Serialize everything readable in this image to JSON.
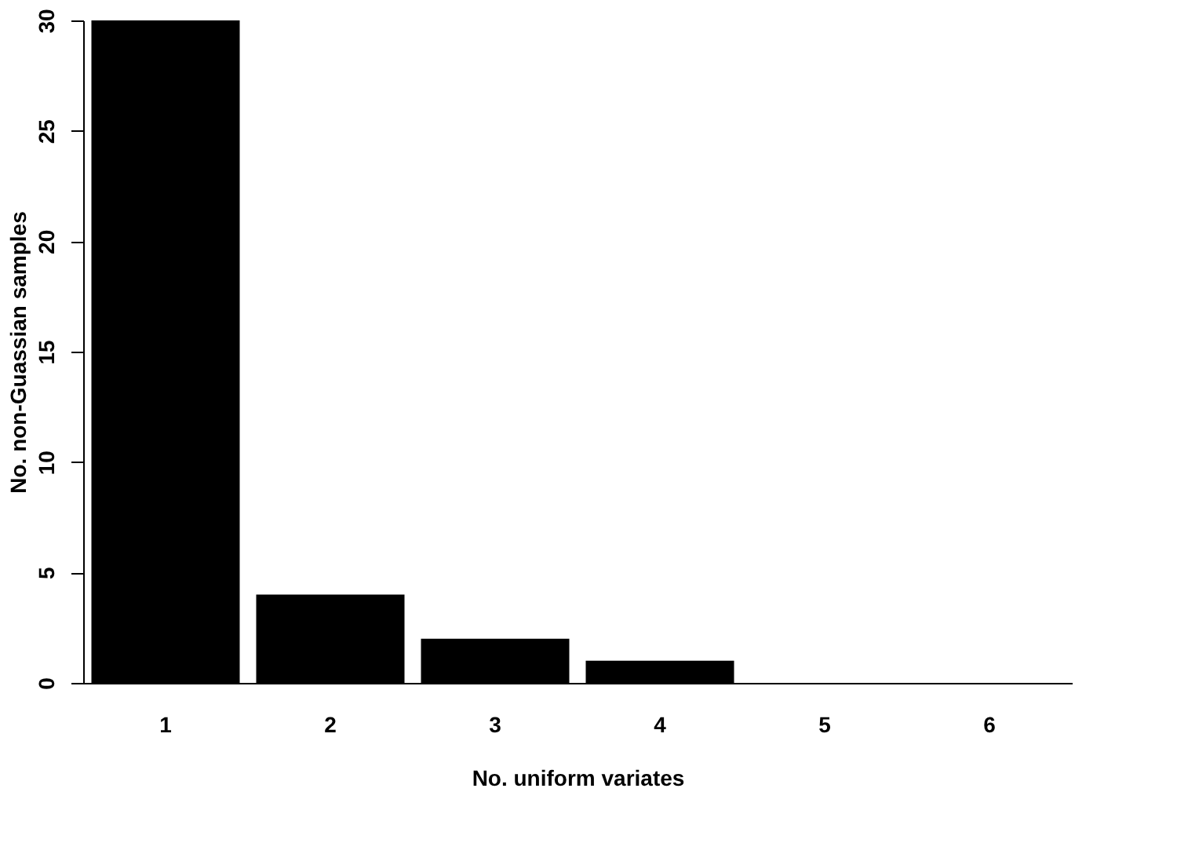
{
  "chart_data": {
    "type": "bar",
    "xlabel": "No. uniform variates",
    "ylabel": "No. non-Guassian samples",
    "categories": [
      "1",
      "2",
      "3",
      "4",
      "5",
      "6"
    ],
    "values": [
      30,
      4,
      2,
      1,
      0,
      0
    ],
    "color": "#000000",
    "ylim": [
      0,
      30
    ],
    "yticks": [
      0,
      5,
      10,
      15,
      20,
      25,
      30
    ],
    "grid": false
  }
}
